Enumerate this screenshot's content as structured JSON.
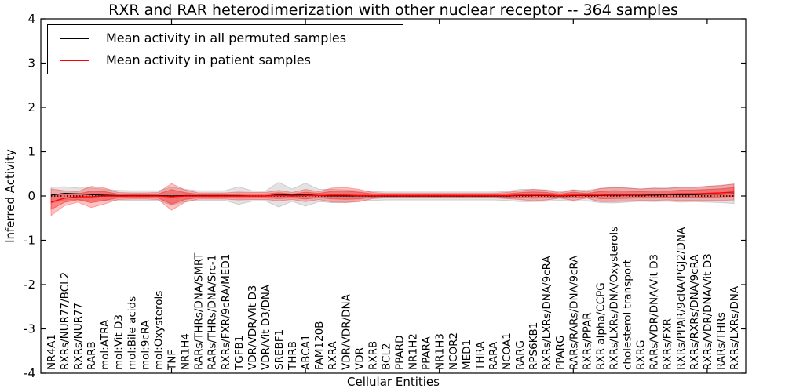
{
  "header": {
    "title": "RXR and RAR heterodimerization with other nuclear receptor -- 364 samples"
  },
  "legend": {
    "entries": [
      {
        "label": "Mean activity in all permuted samples",
        "color": "#000000"
      },
      {
        "label": "Mean activity in patient samples",
        "color": "#ff0000"
      }
    ]
  },
  "colors": {
    "axis": "#000000",
    "permuted_line": "#000000",
    "patient_line": "#ff0000",
    "permuted_band": "rgba(128,128,128,0.22)",
    "patient_band_outer": "rgba(255,0,0,0.24)",
    "patient_band_inner": "rgba(255,0,0,0.32)"
  },
  "chart_data": {
    "type": "line",
    "title": "RXR and RAR heterodimerization with other nuclear receptor -- 364 samples",
    "xlabel": "Cellular Entities",
    "ylabel": "Inferred Activity",
    "ylim": [
      -4,
      4
    ],
    "yticks": [
      4,
      3,
      2,
      1,
      0,
      -1,
      -2,
      -3,
      -4
    ],
    "grid": false,
    "legend_position": "upper left",
    "zero_line": true,
    "categories": [
      "NR4A1",
      "RXRs/NUR77/BCL2",
      "RXRs/NUR77",
      "RARB",
      "mol:ATRA",
      "mol:Vit D3",
      "mol:Bile acids",
      "mol:9cRA",
      "mol:Oxysterols",
      "TNF",
      "NR1H4",
      "RARs/THRs/DNA/SMRT",
      "RARs/THRs/DNA/Src-1",
      "RXRs/FXR/9cRA/MED1",
      "TGFB1",
      "VDR/VDR/Vit D3",
      "VDR/Vit D3/DNA",
      "SREBF1",
      "THRB",
      "ABCA1",
      "FAM120B",
      "RXRA",
      "VDR/VDR/DNA",
      "VDR",
      "RXRB",
      "BCL2",
      "PPARD",
      "NR1H2",
      "PPARA",
      "NR1H3",
      "NCOR2",
      "MED1",
      "THRA",
      "RARA",
      "NCOA1",
      "RARG",
      "RPS6KB1",
      "RXRs/LXRs/DNA/9cRA",
      "PPARG",
      "RARs/RARs/DNA/9cRA",
      "RXRs/PPAR",
      "RXR alpha/CCPG",
      "RXRs/LXRs/DNA/Oxysterols",
      "cholesterol transport",
      "RXRG",
      "RARs/VDR/DNA/Vit D3",
      "RXRs/FXR",
      "RXRs/PPAR/9cRA/PGJ2/DNA",
      "RXRs/RXRs/DNA/9cRA",
      "RXRs/VDR/DNA/Vit D3",
      "RARs/THRs",
      "RXRs/LXRs/DNA"
    ],
    "series": [
      {
        "name": "Mean activity in all permuted samples",
        "color": "#000000",
        "values": [
          0.02,
          0.06,
          0.05,
          0.03,
          0.02,
          0.01,
          0.01,
          0.01,
          0.01,
          0.0,
          0.01,
          0.01,
          0.01,
          0.01,
          0.01,
          0.0,
          0.0,
          0.03,
          0.02,
          0.03,
          0.01,
          0.0,
          0.0,
          0.0,
          0.0,
          0.0,
          0.0,
          0.0,
          0.0,
          0.0,
          0.0,
          0.0,
          0.0,
          0.0,
          0.0,
          0.01,
          0.01,
          0.01,
          0.0,
          0.01,
          0.01,
          0.01,
          0.02,
          0.02,
          0.02,
          0.02,
          0.03,
          0.03,
          0.03,
          0.04,
          0.04,
          0.05
        ]
      },
      {
        "name": "Mean activity in patient samples",
        "color": "#ff0000",
        "values": [
          -0.14,
          -0.05,
          -0.02,
          -0.02,
          0.0,
          0.0,
          0.0,
          0.0,
          0.0,
          -0.02,
          0.0,
          0.0,
          0.0,
          0.0,
          0.0,
          0.0,
          0.0,
          0.01,
          0.0,
          0.01,
          0.01,
          0.02,
          0.02,
          0.01,
          0.01,
          0.01,
          0.01,
          0.01,
          0.01,
          0.01,
          0.01,
          0.01,
          0.01,
          0.01,
          0.01,
          0.02,
          0.02,
          0.02,
          0.01,
          0.02,
          0.02,
          0.02,
          0.03,
          0.03,
          0.03,
          0.04,
          0.04,
          0.05,
          0.05,
          0.06,
          0.07,
          0.09
        ]
      }
    ],
    "bands": {
      "permuted_halfwidth": [
        0.18,
        0.15,
        0.13,
        0.15,
        0.13,
        0.12,
        0.11,
        0.11,
        0.11,
        0.2,
        0.14,
        0.11,
        0.11,
        0.11,
        0.2,
        0.12,
        0.11,
        0.28,
        0.14,
        0.26,
        0.14,
        0.15,
        0.14,
        0.12,
        0.1,
        0.09,
        0.09,
        0.09,
        0.09,
        0.09,
        0.09,
        0.09,
        0.09,
        0.09,
        0.1,
        0.14,
        0.14,
        0.13,
        0.1,
        0.13,
        0.12,
        0.16,
        0.18,
        0.16,
        0.14,
        0.15,
        0.15,
        0.17,
        0.16,
        0.18,
        0.19,
        0.22
      ],
      "patient_outer_halfwidth": [
        0.3,
        0.17,
        0.12,
        0.24,
        0.18,
        0.08,
        0.07,
        0.07,
        0.08,
        0.3,
        0.14,
        0.07,
        0.07,
        0.07,
        0.09,
        0.08,
        0.08,
        0.12,
        0.08,
        0.14,
        0.09,
        0.16,
        0.17,
        0.14,
        0.07,
        0.05,
        0.05,
        0.05,
        0.05,
        0.05,
        0.05,
        0.05,
        0.05,
        0.05,
        0.07,
        0.1,
        0.13,
        0.11,
        0.06,
        0.12,
        0.07,
        0.15,
        0.16,
        0.15,
        0.13,
        0.14,
        0.13,
        0.15,
        0.15,
        0.16,
        0.17,
        0.18
      ],
      "patient_inner_scale": 0.55
    },
    "x_major_tick_indices": [
      9,
      19,
      29,
      39,
      49
    ]
  }
}
